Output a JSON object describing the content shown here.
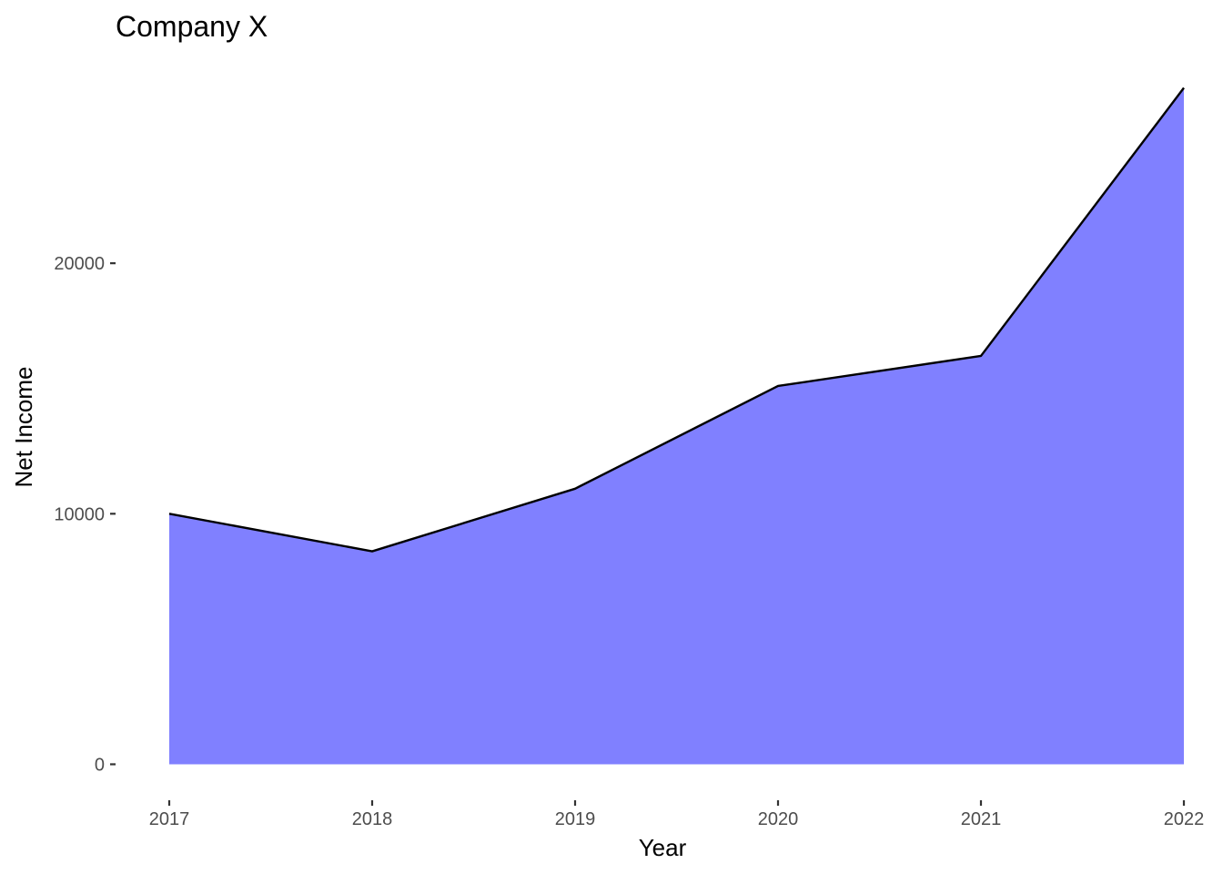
{
  "chart_data": {
    "type": "area",
    "title": "Company X",
    "xlabel": "Year",
    "ylabel": "Net Income",
    "x": [
      2017,
      2018,
      2019,
      2020,
      2021,
      2022
    ],
    "series": [
      {
        "values": [
          10000,
          8500,
          11000,
          15100,
          16300,
          27000
        ]
      }
    ],
    "y_ticks": [
      0,
      10000,
      20000
    ],
    "x_ticks": [
      2017,
      2018,
      2019,
      2020,
      2021,
      2022
    ],
    "ylim": [
      -1400,
      28400
    ],
    "xlim": [
      2016.74,
      2022.13
    ],
    "grid": false,
    "legend": "none",
    "fill_color": "#8080ff",
    "line_color": "#000000"
  }
}
